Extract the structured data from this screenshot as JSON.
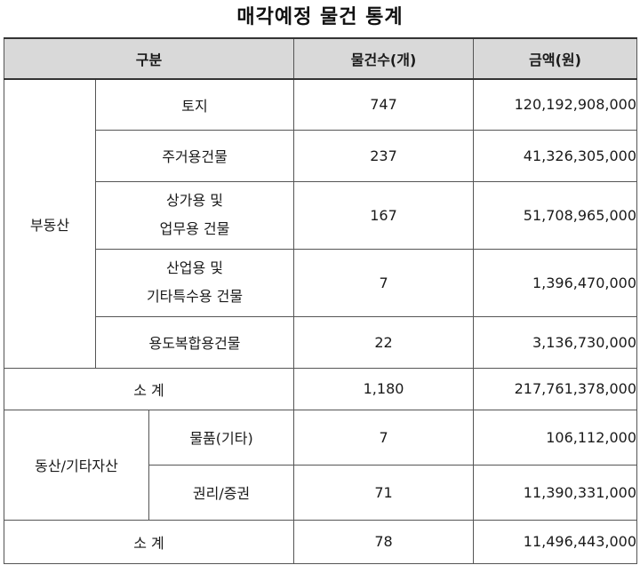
{
  "title": "매각예정 물건 통계",
  "headers": {
    "category": "구분",
    "count": "물건수(개)",
    "amount": "금액(원)"
  },
  "real_estate": {
    "group_label": "부동산",
    "rows": [
      {
        "lines": [
          "토지"
        ],
        "count": "747",
        "amount": "120,192,908,000"
      },
      {
        "lines": [
          "주거용건물"
        ],
        "count": "237",
        "amount": "41,326,305,000"
      },
      {
        "lines": [
          "상가용 및",
          "업무용 건물"
        ],
        "count": "167",
        "amount": "51,708,965,000"
      },
      {
        "lines": [
          "산업용 및",
          "기타특수용 건물"
        ],
        "count": "7",
        "amount": "1,396,470,000"
      },
      {
        "lines": [
          "용도복합용건물"
        ],
        "count": "22",
        "amount": "3,136,730,000"
      }
    ],
    "subtotal": {
      "label": "소 계",
      "count": "1,180",
      "amount": "217,761,378,000"
    }
  },
  "movables": {
    "group_label": "동산/기타자산",
    "rows": [
      {
        "lines": [
          "물품(기타)"
        ],
        "count": "7",
        "amount": "106,112,000"
      },
      {
        "lines": [
          "권리/증권"
        ],
        "count": "71",
        "amount": "11,390,331,000"
      }
    ],
    "subtotal": {
      "label": "소 계",
      "count": "78",
      "amount": "11,496,443,000"
    }
  }
}
